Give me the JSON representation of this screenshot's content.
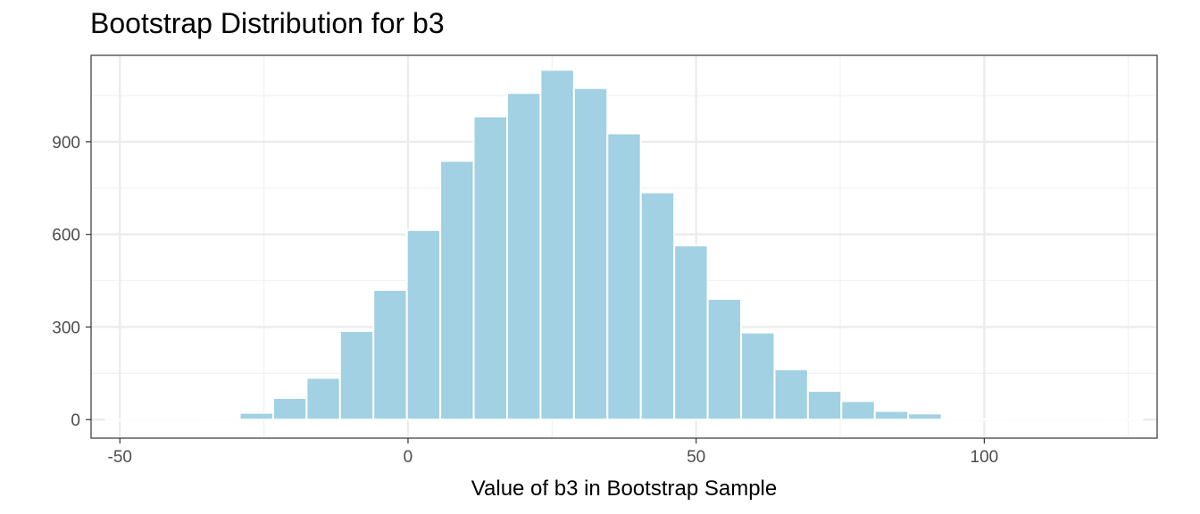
{
  "chart_data": {
    "type": "bar",
    "title": "Bootstrap Distribution for b3",
    "xlabel": "Value of b3 in Bootstrap Sample",
    "ylabel": "",
    "xlim": [
      -55,
      130
    ],
    "ylim": [
      -60,
      1180
    ],
    "x_ticks": [
      -50,
      0,
      50,
      100
    ],
    "y_ticks": [
      0,
      300,
      600,
      900
    ],
    "bin_width": 5.8,
    "bins": [
      {
        "x": -49.5,
        "count": 0
      },
      {
        "x": -43.7,
        "count": 0
      },
      {
        "x": -37.9,
        "count": 0
      },
      {
        "x": -32.1,
        "count": 5
      },
      {
        "x": -26.3,
        "count": 22
      },
      {
        "x": -20.5,
        "count": 70
      },
      {
        "x": -14.7,
        "count": 135
      },
      {
        "x": -8.9,
        "count": 287
      },
      {
        "x": -3.1,
        "count": 420
      },
      {
        "x": 2.7,
        "count": 614
      },
      {
        "x": 8.5,
        "count": 838
      },
      {
        "x": 14.3,
        "count": 982
      },
      {
        "x": 20.1,
        "count": 1058
      },
      {
        "x": 25.9,
        "count": 1133
      },
      {
        "x": 31.7,
        "count": 1074
      },
      {
        "x": 37.5,
        "count": 927
      },
      {
        "x": 43.3,
        "count": 736
      },
      {
        "x": 49.1,
        "count": 564
      },
      {
        "x": 54.9,
        "count": 391
      },
      {
        "x": 60.7,
        "count": 282
      },
      {
        "x": 66.5,
        "count": 163
      },
      {
        "x": 72.3,
        "count": 93
      },
      {
        "x": 78.1,
        "count": 60
      },
      {
        "x": 83.9,
        "count": 28
      },
      {
        "x": 89.7,
        "count": 20
      },
      {
        "x": 95.5,
        "count": 2
      },
      {
        "x": 101.3,
        "count": 1
      },
      {
        "x": 107.1,
        "count": 0
      },
      {
        "x": 112.9,
        "count": 0
      },
      {
        "x": 118.7,
        "count": 0
      },
      {
        "x": 124.5,
        "count": 1
      }
    ],
    "grid": true,
    "colors": {
      "bar_fill": "#a1d1e2",
      "bar_outline": "#ffffff",
      "grid_major": "#ebebeb",
      "grid_minor": "#f2f2f2",
      "panel_border": "#333333"
    }
  }
}
